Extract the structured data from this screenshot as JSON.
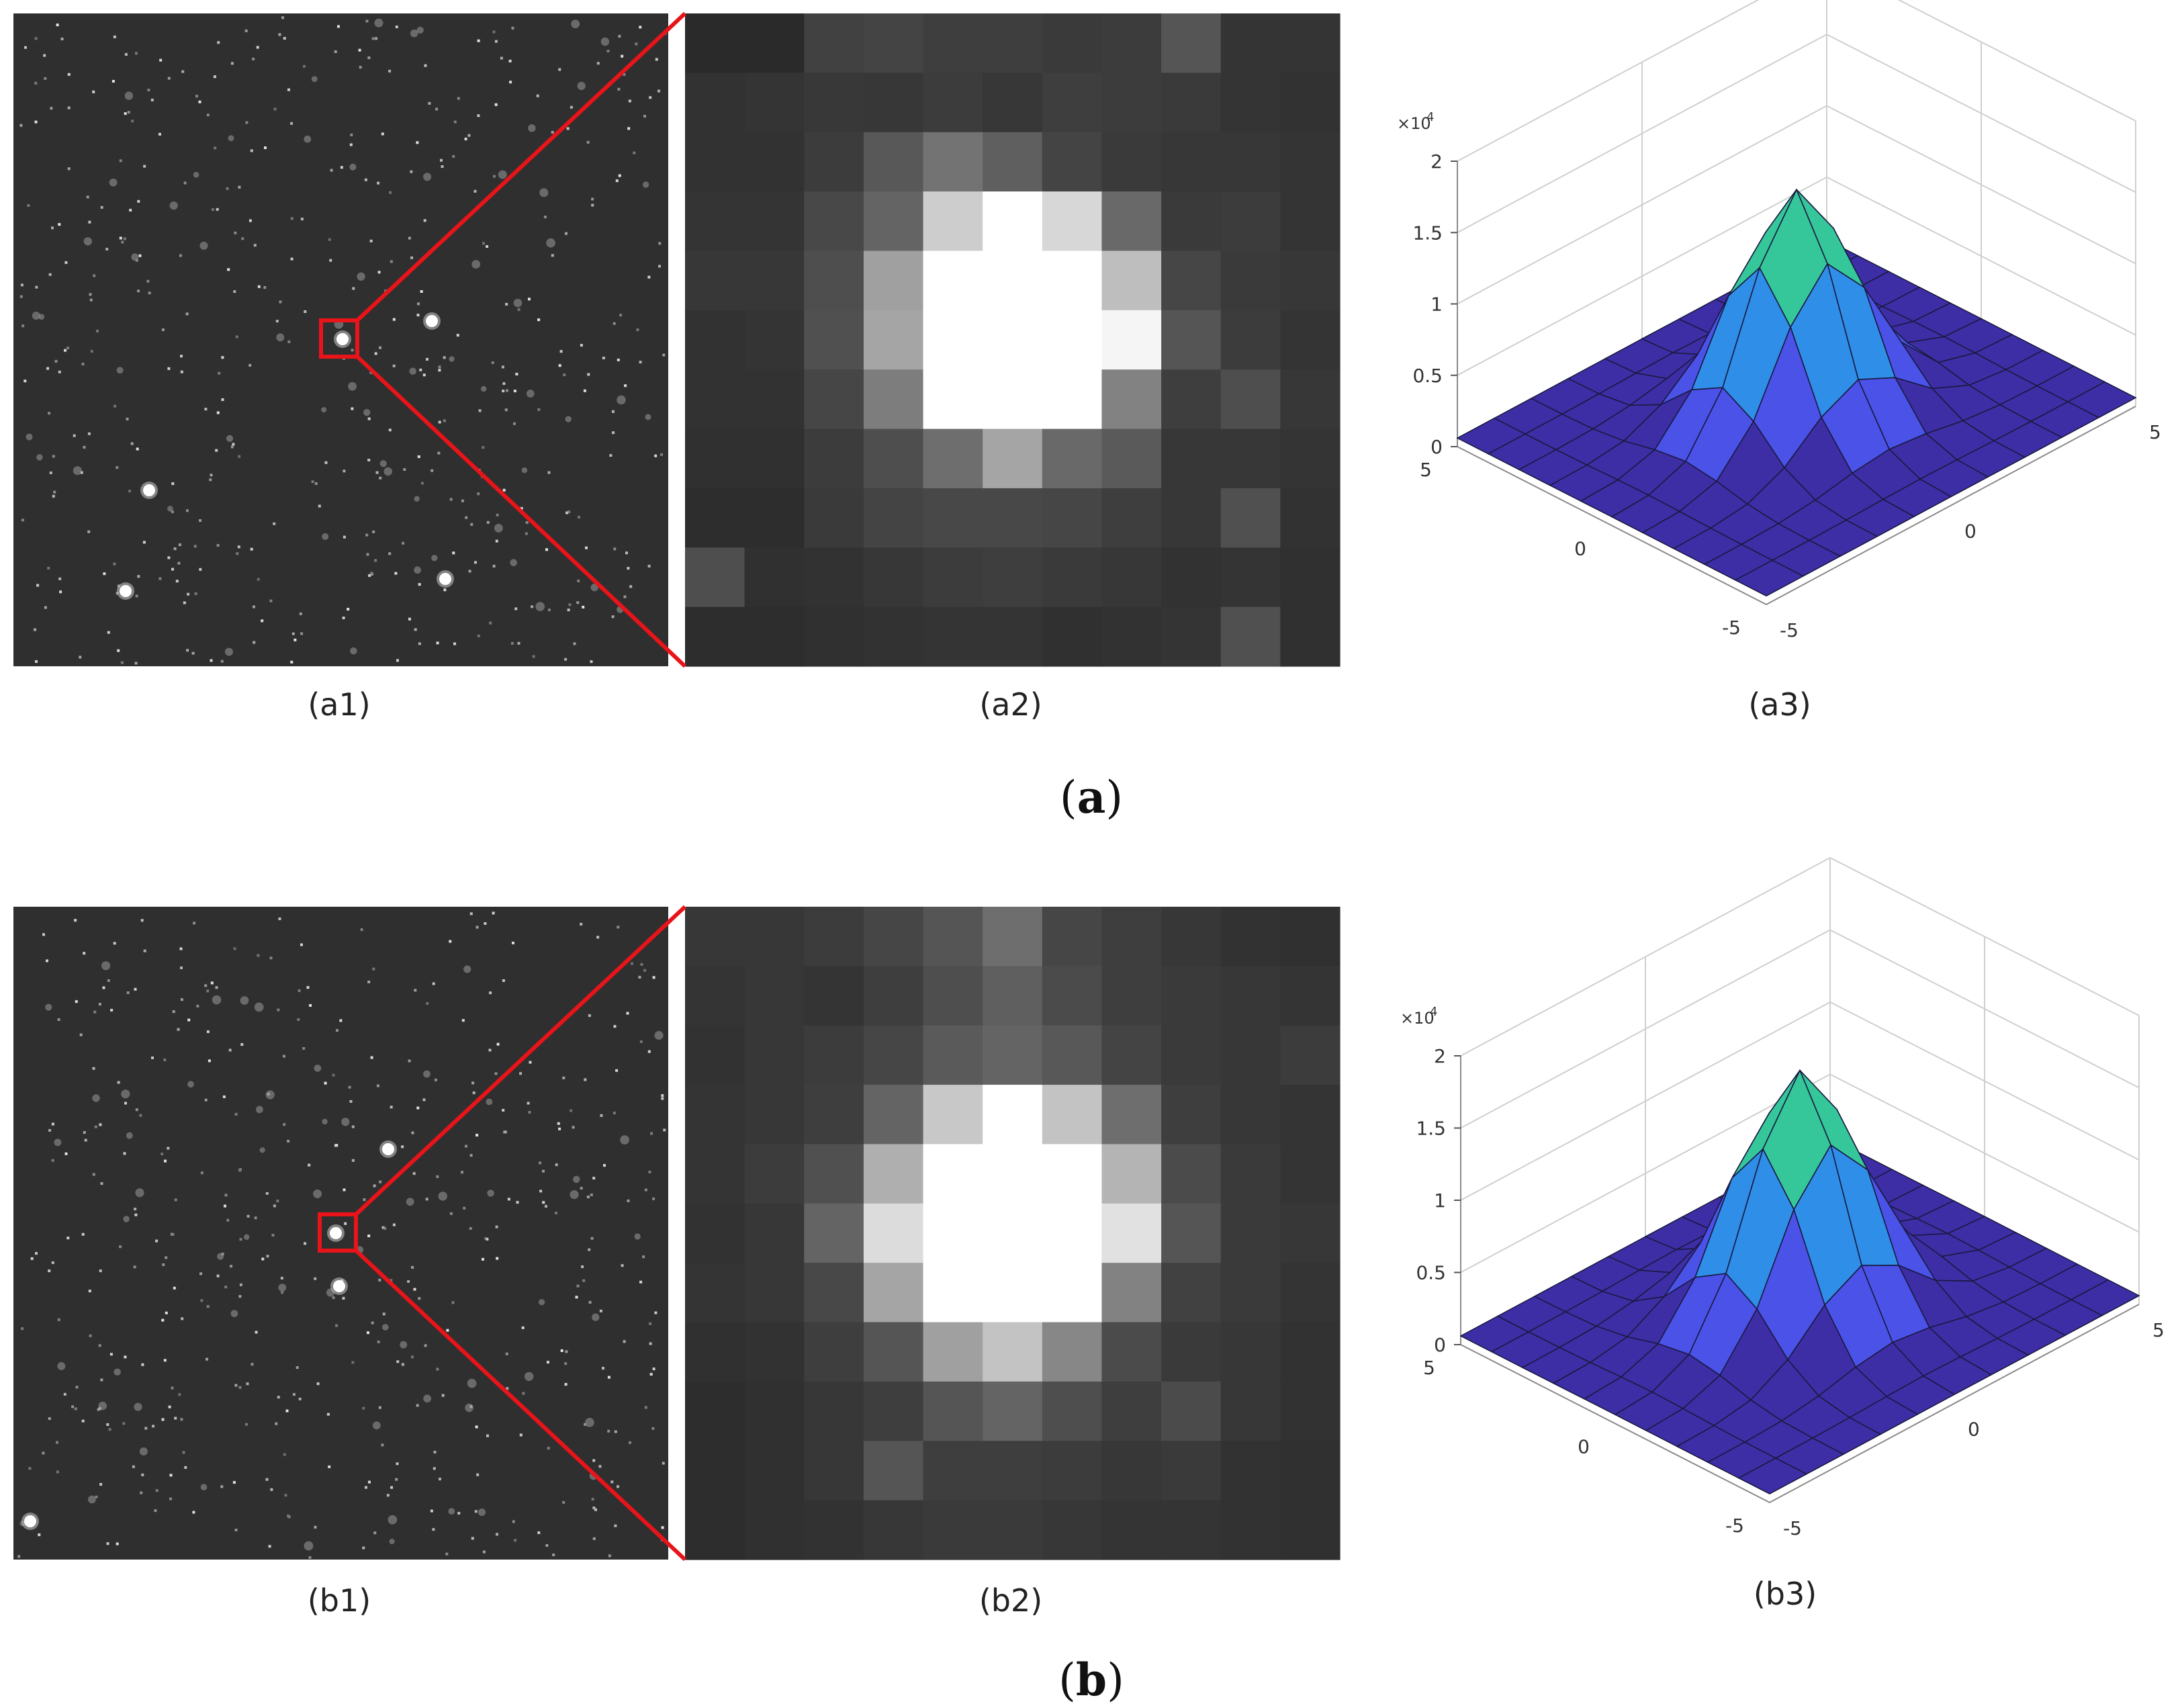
{
  "figure": {
    "panels": {
      "a1": "(a1)",
      "a2": "(a2)",
      "a3": "(a3)",
      "b1": "(b1)",
      "b2": "(b2)",
      "b3": "(b3)"
    },
    "groups": {
      "a": {
        "open": "(",
        "letter": "a",
        "close": ")"
      },
      "b": {
        "open": "(",
        "letter": "b",
        "close": ")"
      }
    }
  },
  "colors": {
    "sky_background": "#2f2f2f",
    "zoom_box": "#e8141a",
    "surface_palette": [
      "#3d2ea6",
      "#4a52e8",
      "#2f8ee8",
      "#16b4c8",
      "#35c79a",
      "#f0b83a",
      "#f8f020"
    ]
  },
  "star_fields": {
    "a1": {
      "bright_stars": [
        {
          "x": 510,
          "y": 505
        },
        {
          "x": 643,
          "y": 478
        },
        {
          "x": 222,
          "y": 730
        },
        {
          "x": 187,
          "y": 880
        },
        {
          "x": 663,
          "y": 862
        }
      ],
      "noise_seed": 17
    },
    "b1": {
      "bright_stars": [
        {
          "x": 500,
          "y": 1836
        },
        {
          "x": 578,
          "y": 1711
        },
        {
          "x": 505,
          "y": 1915
        },
        {
          "x": 45,
          "y": 2265
        }
      ],
      "noise_seed": 42
    }
  },
  "zoom_grids": {
    "a2": {
      "rows": 11,
      "cols": 11,
      "values": [
        [
          42,
          42,
          65,
          68,
          62,
          62,
          58,
          60,
          85,
          52,
          52
        ],
        [
          50,
          52,
          56,
          55,
          60,
          55,
          62,
          60,
          58,
          52,
          50
        ],
        [
          50,
          50,
          60,
          88,
          115,
          95,
          68,
          58,
          55,
          55,
          52
        ],
        [
          52,
          52,
          72,
          100,
          205,
          255,
          215,
          105,
          58,
          60,
          52
        ],
        [
          55,
          55,
          78,
          160,
          255,
          255,
          255,
          190,
          70,
          58,
          55
        ],
        [
          50,
          52,
          80,
          165,
          255,
          255,
          255,
          245,
          85,
          60,
          52
        ],
        [
          50,
          50,
          70,
          125,
          255,
          255,
          255,
          130,
          62,
          78,
          55
        ],
        [
          48,
          48,
          60,
          78,
          110,
          165,
          105,
          90,
          55,
          55,
          52
        ],
        [
          45,
          45,
          58,
          68,
          72,
          72,
          70,
          62,
          55,
          80,
          50
        ],
        [
          78,
          48,
          50,
          55,
          60,
          62,
          58,
          55,
          50,
          52,
          48
        ],
        [
          45,
          45,
          48,
          50,
          52,
          52,
          48,
          50,
          52,
          80,
          48
        ]
      ]
    },
    "b2": {
      "rows": 11,
      "cols": 11,
      "values": [
        [
          55,
          55,
          60,
          70,
          85,
          110,
          70,
          62,
          55,
          50,
          48
        ],
        [
          52,
          55,
          52,
          62,
          78,
          95,
          75,
          62,
          58,
          55,
          52
        ],
        [
          50,
          55,
          60,
          70,
          90,
          100,
          88,
          68,
          58,
          55,
          60
        ],
        [
          52,
          55,
          62,
          100,
          200,
          255,
          195,
          110,
          62,
          55,
          52
        ],
        [
          52,
          60,
          80,
          175,
          255,
          255,
          255,
          180,
          75,
          58,
          52
        ],
        [
          50,
          55,
          100,
          220,
          255,
          255,
          255,
          225,
          85,
          58,
          55
        ],
        [
          52,
          55,
          72,
          165,
          255,
          255,
          255,
          130,
          65,
          58,
          52
        ],
        [
          48,
          50,
          62,
          85,
          160,
          195,
          135,
          75,
          58,
          55,
          50
        ],
        [
          45,
          48,
          55,
          62,
          85,
          100,
          78,
          62,
          75,
          55,
          50
        ],
        [
          45,
          48,
          55,
          85,
          62,
          62,
          60,
          55,
          58,
          50,
          48
        ],
        [
          45,
          48,
          50,
          55,
          58,
          58,
          55,
          52,
          52,
          50,
          48
        ]
      ]
    }
  },
  "chart_data": [
    {
      "type": "surface",
      "panel": "a3",
      "title": "",
      "z_scale_label": "×10",
      "z_scale_exponent": "4",
      "x_ticks": [
        "5",
        "0",
        "-5"
      ],
      "y_ticks": [
        "5",
        "0",
        "-5"
      ],
      "z_ticks": [
        "0",
        "0.5",
        "1",
        "1.5",
        "2"
      ],
      "xlim": [
        -5,
        5
      ],
      "ylim": [
        -5,
        5
      ],
      "zlim": [
        0,
        20000
      ],
      "peak": {
        "x": 0,
        "y": 0,
        "z": 16000
      },
      "sigma": 1.3,
      "grid": "on"
    },
    {
      "type": "surface",
      "panel": "b3",
      "title": "",
      "z_scale_label": "×10",
      "z_scale_exponent": "4",
      "x_ticks": [
        "5",
        "0",
        "-5"
      ],
      "y_ticks": [
        "5",
        "0",
        "-5"
      ],
      "z_ticks": [
        "0",
        "0.5",
        "1",
        "1.5",
        "2"
      ],
      "xlim": [
        -5,
        5
      ],
      "ylim": [
        -5,
        5
      ],
      "zlim": [
        0,
        20000
      ],
      "peak": {
        "x": 0,
        "y": 0,
        "z": 17000
      },
      "sigma": 1.35,
      "grid": "on"
    }
  ]
}
